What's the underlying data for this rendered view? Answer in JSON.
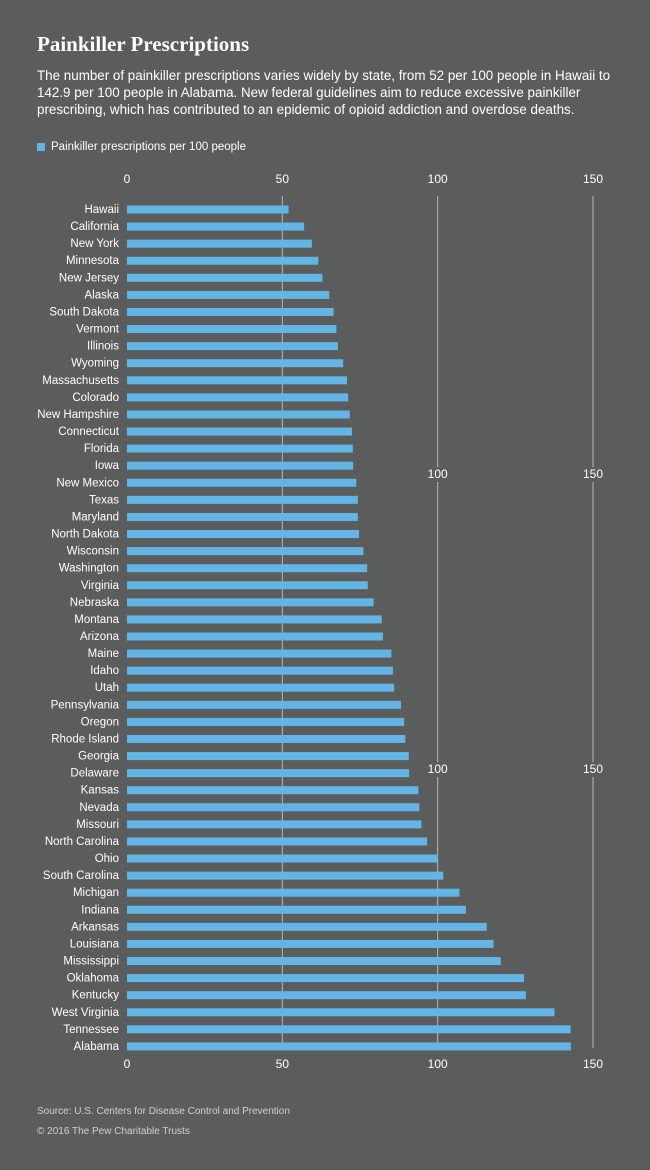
{
  "title": "Painkiller Prescriptions",
  "subtitle": "The number of painkiller prescriptions varies widely by state, from 52 per 100 people in Hawaii to 142.9 per 100 people in Alabama. New federal guidelines aim to reduce excessive painkiller prescribing, which has contributed to an epidemic of opioid addiction and overdose deaths.",
  "legend_label": "Painkiller prescriptions per 100 people",
  "source": "Source: U.S. Centers for Disease Control and Prevention",
  "copyright": "© 2016 The Pew Charitable Trusts",
  "colors": {
    "background": "#5b5d5c",
    "bar": "#63b5e5",
    "grid": "#b9b9b9"
  },
  "chart_data": {
    "type": "bar",
    "orientation": "horizontal",
    "xlim": [
      0,
      150
    ],
    "ticks": [
      0,
      50,
      100,
      150
    ],
    "repeated_tick_labels": [
      100,
      150
    ],
    "grid": true,
    "legend_position": "top-left",
    "categories": [
      "Hawaii",
      "California",
      "New York",
      "Minnesota",
      "New Jersey",
      "Alaska",
      "South Dakota",
      "Vermont",
      "Illinois",
      "Wyoming",
      "Massachusetts",
      "Colorado",
      "New Hampshire",
      "Connecticut",
      "Florida",
      "Iowa",
      "New Mexico",
      "Texas",
      "Maryland",
      "North Dakota",
      "Wisconsin",
      "Washington",
      "Virginia",
      "Nebraska",
      "Montana",
      "Arizona",
      "Maine",
      "Idaho",
      "Utah",
      "Pennsylvania",
      "Oregon",
      "Rhode Island",
      "Georgia",
      "Delaware",
      "Kansas",
      "Nevada",
      "Missouri",
      "North Carolina",
      "Ohio",
      "South Carolina",
      "Michigan",
      "Indiana",
      "Arkansas",
      "Louisiana",
      "Mississippi",
      "Oklahoma",
      "Kentucky",
      "West Virginia",
      "Tennessee",
      "Alabama"
    ],
    "series": [
      {
        "name": "Painkiller prescriptions per 100 people",
        "values": [
          52.0,
          57.0,
          59.5,
          61.6,
          62.9,
          65.1,
          66.5,
          67.4,
          67.9,
          69.6,
          70.8,
          71.2,
          71.7,
          72.4,
          72.7,
          72.8,
          73.8,
          74.3,
          74.3,
          74.7,
          76.1,
          77.3,
          77.5,
          79.4,
          82.0,
          82.4,
          85.1,
          85.6,
          86.0,
          88.2,
          89.2,
          89.6,
          90.7,
          90.8,
          93.8,
          94.1,
          94.8,
          96.6,
          100.1,
          101.8,
          107.0,
          109.1,
          115.8,
          118.0,
          120.3,
          127.8,
          128.4,
          137.6,
          142.8,
          142.9
        ]
      }
    ]
  }
}
